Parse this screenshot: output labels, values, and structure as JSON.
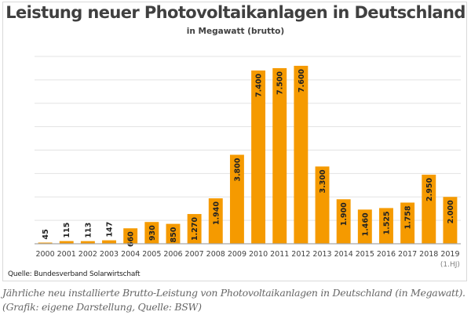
{
  "chart_data": {
    "type": "bar",
    "title": "Leistung neuer Photovoltaikanlagen in Deutschland",
    "subtitle": "in Megawatt (brutto)",
    "xlabel": "",
    "ylabel": "",
    "ylim": [
      0,
      8000
    ],
    "ygrid_step": 1000,
    "grid": true,
    "legend": "none",
    "categories": [
      "2000",
      "2001",
      "2002",
      "2003",
      "2004",
      "2005",
      "2006",
      "2007",
      "2008",
      "2009",
      "2010",
      "2011",
      "2012",
      "2013",
      "2014",
      "2015",
      "2016",
      "2017",
      "2018",
      "2019"
    ],
    "category_sublabels": {
      "2019": "(1.HJ)"
    },
    "values": [
      45,
      115,
      113,
      147,
      660,
      930,
      850,
      1270,
      1940,
      3800,
      7400,
      7500,
      7600,
      3300,
      1900,
      1460,
      1525,
      1758,
      2950,
      2000
    ],
    "data_labels": [
      "45",
      "115",
      "113",
      "147",
      "660",
      "930",
      "850",
      "1.270",
      "1.940",
      "3.800",
      "7.400",
      "7.500",
      "7.600",
      "3.300",
      "1.900",
      "1.460",
      "1.525",
      "1.758",
      "2.950",
      "2.000"
    ],
    "colors": {
      "bar": "#f59a00",
      "grid": "#e3e3e3",
      "axis": "#a6a6a6",
      "label": "#222222",
      "tick": "#404040"
    }
  },
  "source": "Quelle: Bundesverband Solarwirtschaft",
  "caption": "Jährliche neu installierte Brutto-Leistung von Photovoltaikanlagen in Deutschland (in Megawatt). (Grafik: eigene Darstellung, Quelle: BSW)"
}
